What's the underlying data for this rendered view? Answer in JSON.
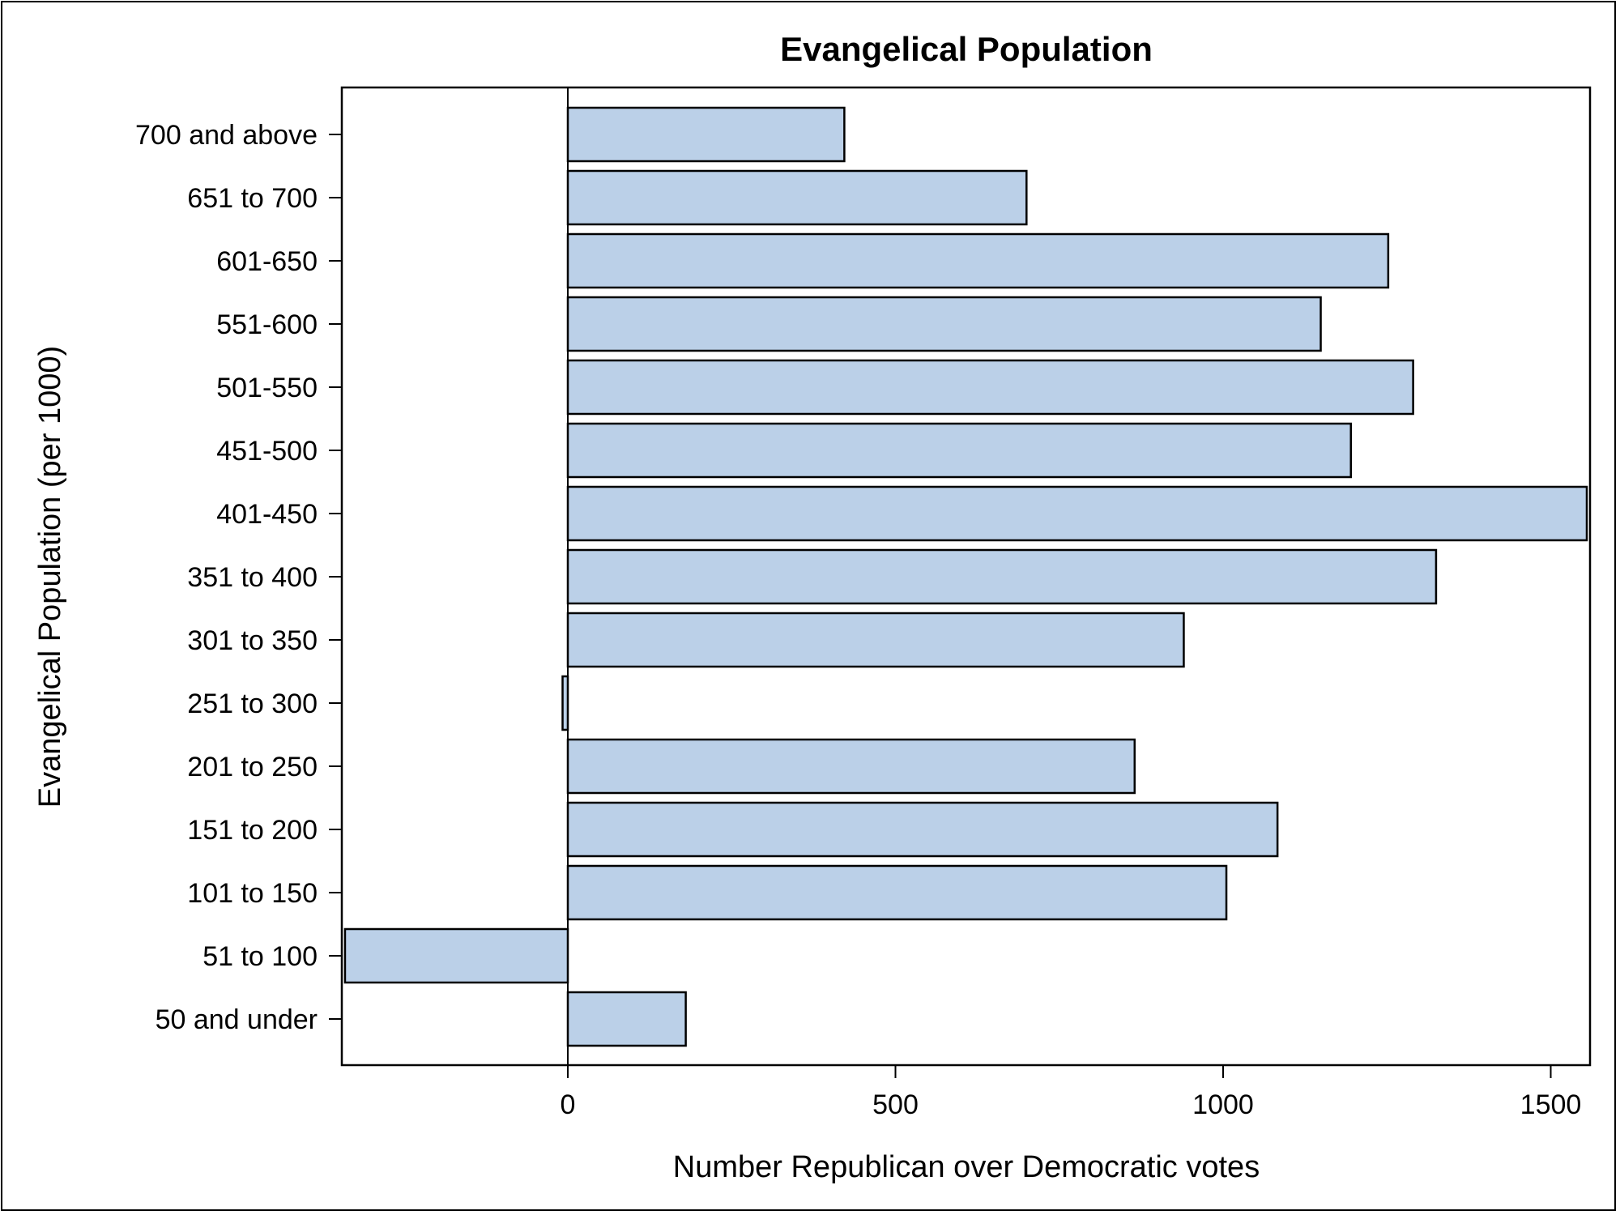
{
  "chart_data": {
    "type": "bar",
    "orientation": "horizontal",
    "title": "Evangelical Population",
    "xlabel": "Number Republican over Democratic votes",
    "ylabel": "Evangelical Population (per 1000)",
    "categories": [
      "700 and above",
      "651 to 700",
      "601-650",
      "551-600",
      "501-550",
      "451-500",
      "401-450",
      "351 to 400",
      "301 to 350",
      "251 to 300",
      "201 to 250",
      "151 to 200",
      "101 to 150",
      "51 to 100",
      "50 and under"
    ],
    "values": [
      422,
      700,
      1252,
      1149,
      1290,
      1195,
      1555,
      1325,
      940,
      -8,
      865,
      1083,
      1005,
      -340,
      180
    ],
    "xlim": [
      -345,
      1563
    ],
    "xticks": [
      0,
      500,
      1000,
      1500
    ],
    "grid": false,
    "bar_color": "#bbd0e8"
  }
}
